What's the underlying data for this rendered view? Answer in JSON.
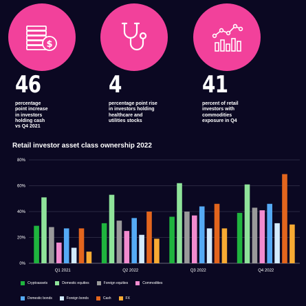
{
  "stats": [
    {
      "value": "46",
      "lines": [
        "percentage",
        "point increase",
        "in investors",
        "holding cash",
        "vs Q4 2021"
      ],
      "icon": "cash-coin-icon"
    },
    {
      "value": "4",
      "lines": [
        "percentage point rise",
        "in investors holding",
        "healthcare and",
        "utilities stocks"
      ],
      "icon": "stethoscope-icon"
    },
    {
      "value": "41",
      "lines": [
        "percent of retail",
        "investors with",
        "commodities",
        "exposure in Q4"
      ],
      "icon": "bar-chart-icon"
    }
  ],
  "colors": {
    "background": "#0b0822",
    "accent": "#f2419b"
  },
  "chart_data": {
    "type": "bar",
    "title": "Retail investor asset class ownership 2022",
    "categories": [
      "Q1 2021",
      "Q2 2022",
      "Q3 2022",
      "Q4 2022"
    ],
    "ylim": [
      0,
      80
    ],
    "yticks": [
      "0%",
      "20%",
      "40%",
      "60%",
      "80%"
    ],
    "grid": true,
    "legend_position": "bottom",
    "series": [
      {
        "name": "Cryptoassets",
        "color": "#1fb43e",
        "values": [
          29,
          31,
          36,
          39
        ]
      },
      {
        "name": "Domestic equities",
        "color": "#8fe39a",
        "values": [
          51,
          53,
          62,
          61
        ]
      },
      {
        "name": "Foreign equities",
        "color": "#9a9a9a",
        "values": [
          28,
          33,
          40,
          43
        ]
      },
      {
        "name": "Commodities",
        "color": "#f28bcf",
        "values": [
          16,
          25,
          37,
          41
        ]
      },
      {
        "name": "Domestic bonds",
        "color": "#55aaf5",
        "values": [
          27,
          35,
          44,
          46
        ]
      },
      {
        "name": "Foreign bonds",
        "color": "#d3ebfd",
        "values": [
          12,
          22,
          27,
          31
        ]
      },
      {
        "name": "Cash",
        "color": "#e3651d",
        "values": [
          27,
          40,
          46,
          69
        ]
      },
      {
        "name": "FX",
        "color": "#f7aa33",
        "values": [
          9,
          19,
          27,
          30
        ]
      }
    ]
  }
}
